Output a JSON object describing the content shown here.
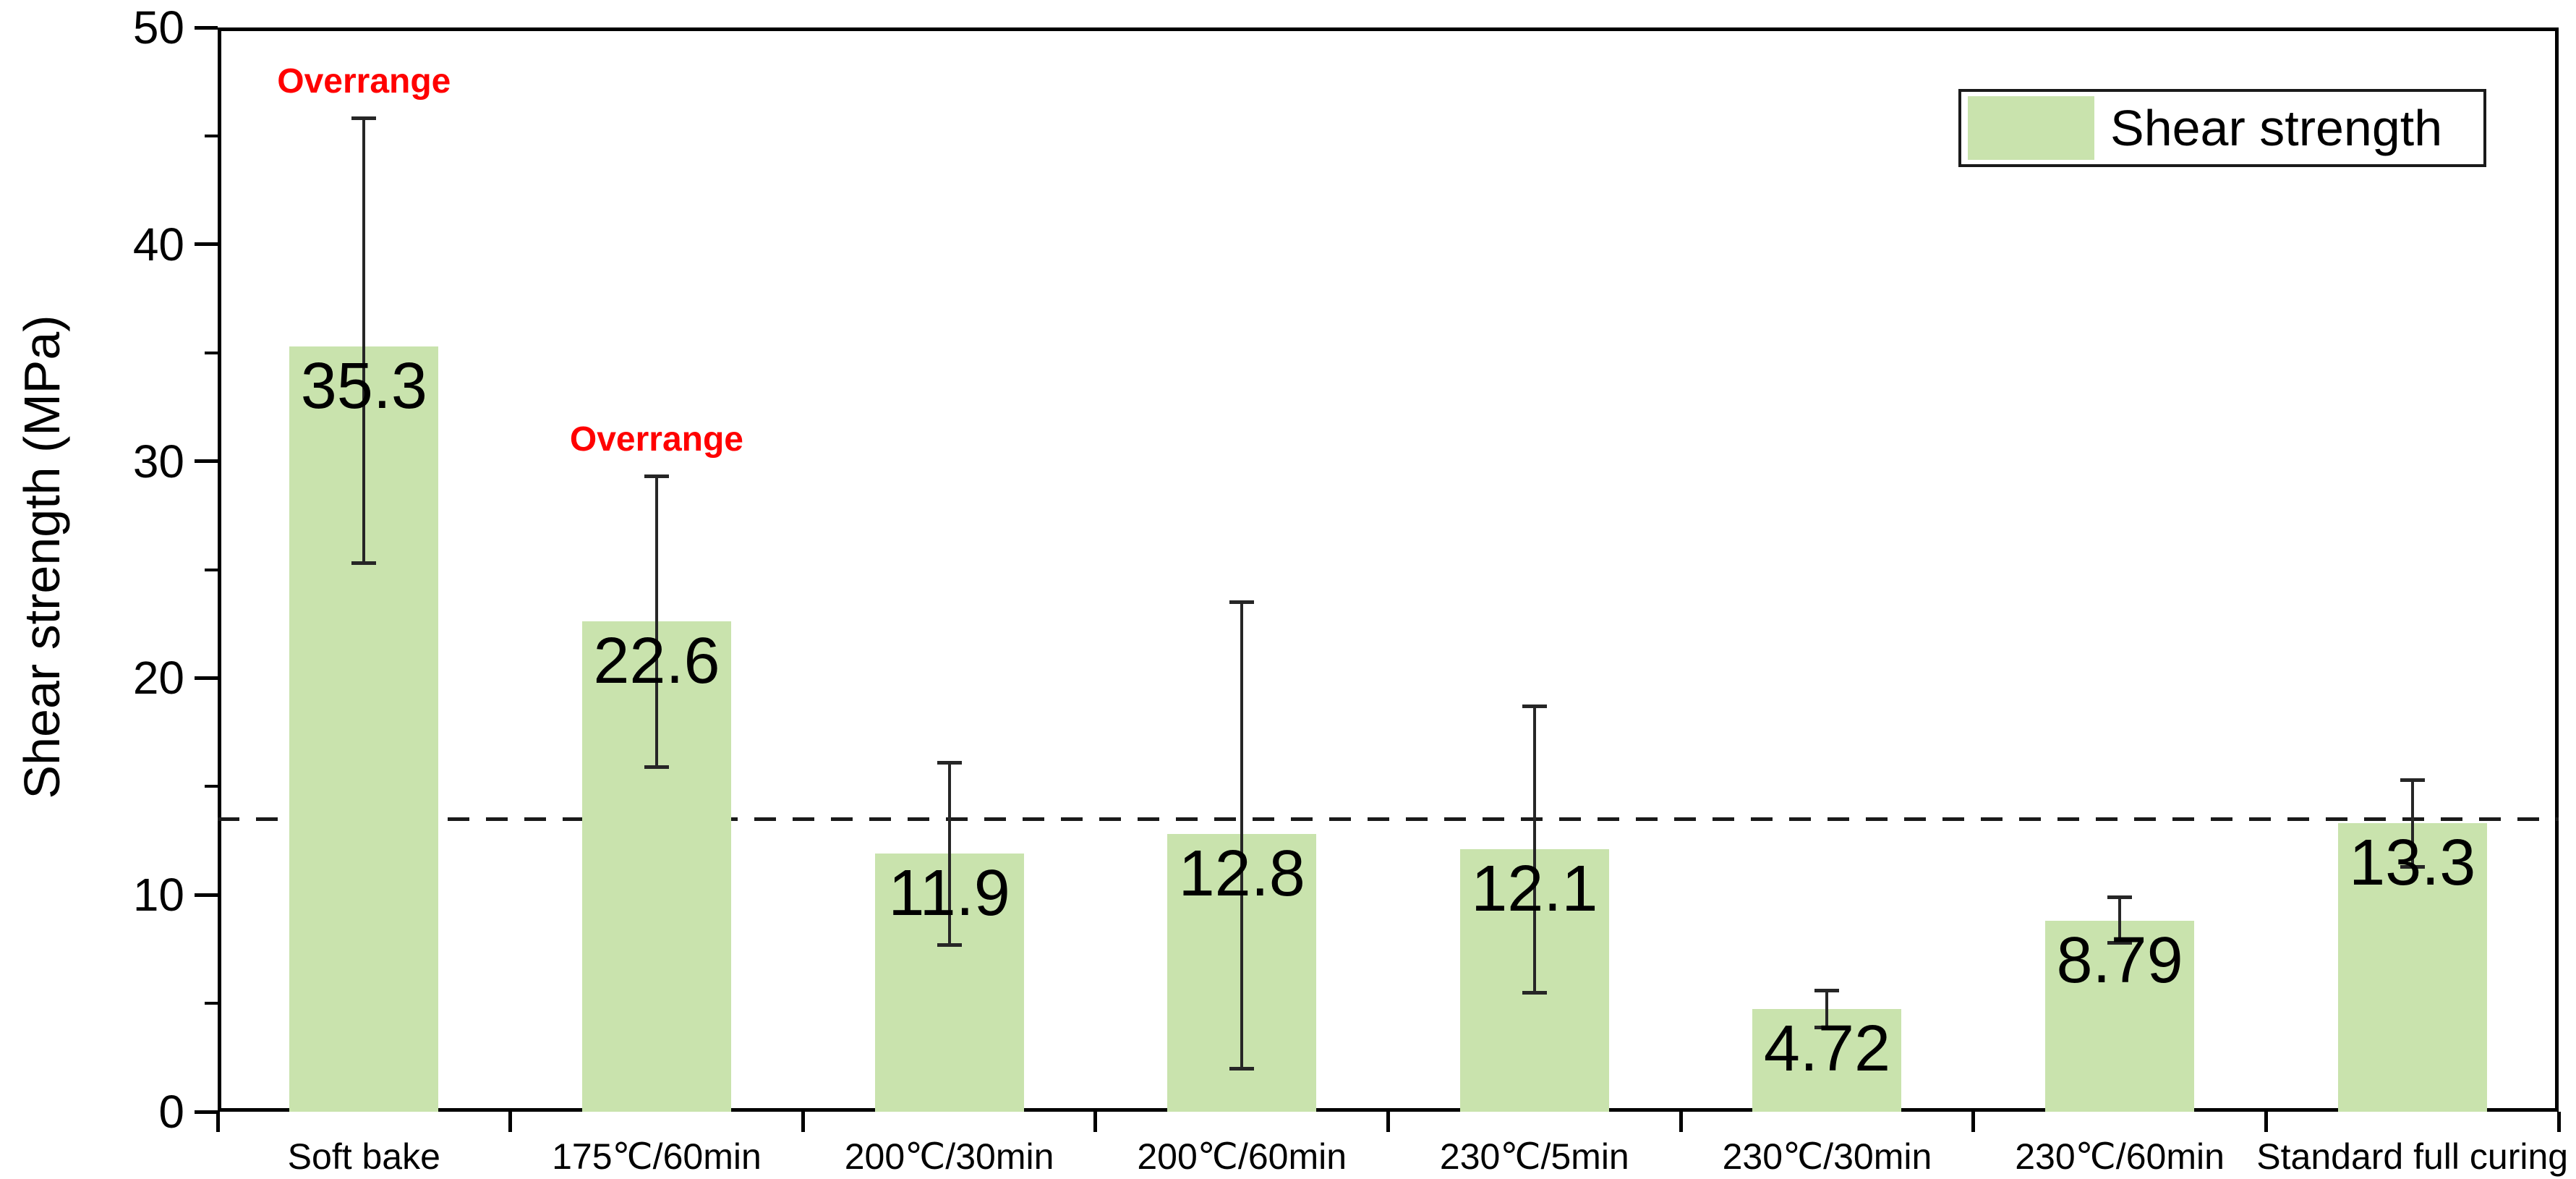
{
  "y_axis": {
    "title": "Shear strength (MPa)",
    "major_ticks": [
      "0",
      "10",
      "20",
      "30",
      "40",
      "50"
    ],
    "major_tick_values": [
      0,
      10,
      20,
      30,
      40,
      50
    ],
    "minor_tick_values": [
      5,
      15,
      25,
      35,
      45
    ]
  },
  "legend": {
    "label": "Shear strength"
  },
  "overrange_label": "Overrange",
  "colors": {
    "bar_fill": "#c9e3ad",
    "axis": "#000000",
    "error_bar": "#262626",
    "overrange_text": "#ff0000",
    "reference_line": "#1a1a1a"
  },
  "chart_data": {
    "type": "bar",
    "title": "",
    "xlabel": "",
    "ylabel": "Shear strength (MPa)",
    "ylim": [
      0,
      50
    ],
    "grid": false,
    "legend_position": "top-right",
    "legend_entries": [
      "Shear strength"
    ],
    "categories": [
      "Soft bake",
      "175℃/60min",
      "200℃/30min",
      "200℃/60min",
      "230℃/5min",
      "230℃/30min",
      "230℃/60min",
      "Standard full curing"
    ],
    "values": [
      35.3,
      22.6,
      11.9,
      12.8,
      12.1,
      4.72,
      8.79,
      13.3
    ],
    "value_labels": [
      "35.3",
      "22.6",
      "11.9",
      "12.8",
      "12.1",
      "4.72",
      "8.79",
      "13.3"
    ],
    "error_low": [
      25.3,
      15.9,
      7.7,
      2.0,
      5.5,
      3.9,
      7.8,
      11.3
    ],
    "error_high": [
      45.8,
      29.3,
      16.1,
      23.5,
      18.7,
      5.6,
      9.9,
      15.3
    ],
    "overrange_flags": [
      true,
      true,
      false,
      false,
      false,
      false,
      false,
      false
    ],
    "reference_line_value": 13.5
  }
}
